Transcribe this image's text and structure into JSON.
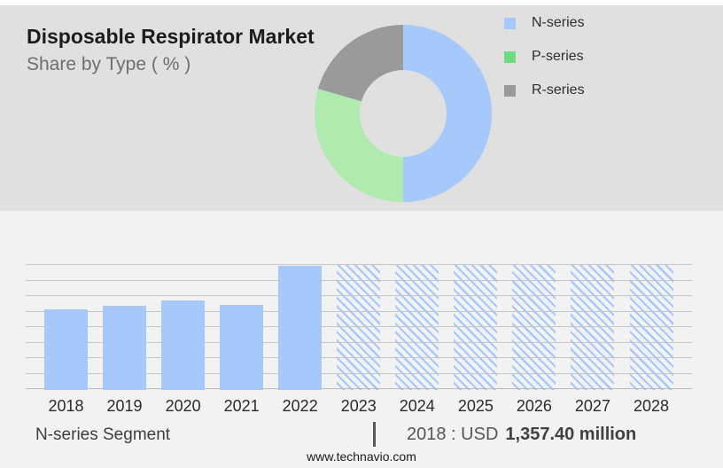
{
  "header": {
    "title": "Disposable Respirator Market",
    "subtitle": "Share by Type ( % )"
  },
  "legend": {
    "items": [
      {
        "label": "N-series",
        "color": "#a6c8fa"
      },
      {
        "label": "P-series",
        "color": "#6edc83"
      },
      {
        "label": "R-series",
        "color": "#9a9a9a"
      }
    ]
  },
  "footer": {
    "segment_label": "N-series Segment",
    "separator": "|",
    "stat_prefix": "2018 : USD",
    "stat_value": "1,357.40 million",
    "website": "www.technavio.com"
  },
  "colors": {
    "top_band_bg": "#e0e0e0",
    "lower_band_bg": "#f2f2f3",
    "bar_solid": "#a6c8fa",
    "gridline": "#c6c6c6",
    "title_text": "#1c1c1c",
    "subtitle_text": "#6e6e6e"
  },
  "chart_data": [
    {
      "type": "pie",
      "variant": "donut",
      "title": "Disposable Respirator Market — Share by Type ( % )",
      "hole_ratio": 0.49,
      "legend_position": "right",
      "start_angle_deg": 0,
      "segments": [
        {
          "label": "N-series",
          "value": 50,
          "color": "#a6c8fa"
        },
        {
          "label": "P-series",
          "value": 29.5,
          "color": "#b0eaae"
        },
        {
          "label": "R-series",
          "value": 20.5,
          "color": "#9a9a9a"
        }
      ]
    },
    {
      "type": "bar",
      "title": "N-series Segment, 2018-2028",
      "categories": [
        "2018",
        "2019",
        "2020",
        "2021",
        "2022",
        "2023",
        "2024",
        "2025",
        "2026",
        "2027",
        "2028"
      ],
      "values_relative": [
        0.645,
        0.674,
        0.716,
        0.681,
        0.993,
        1,
        1,
        1,
        1,
        1,
        1
      ],
      "hatched_forecast": [
        false,
        false,
        false,
        false,
        false,
        true,
        true,
        true,
        true,
        true,
        true
      ],
      "known_values_usd_million": {
        "2018": 1357.4
      },
      "annotation": "2018 : USD 1,357.40 million",
      "xlabel": "",
      "ylabel": "",
      "y_axis_labels_shown": false,
      "gridlines": 9,
      "grid": true,
      "bar_color": "#a6c8fa"
    }
  ]
}
